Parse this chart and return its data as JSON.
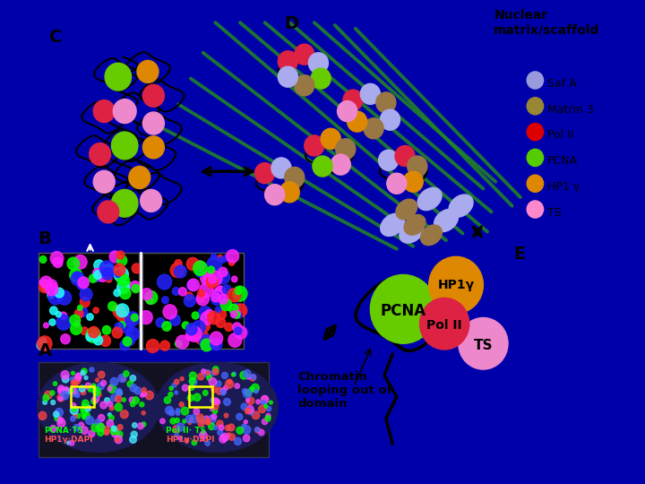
{
  "background_color": "#ffffff",
  "outer_background": "#0000aa",
  "legend_items": [
    {
      "label": "Saf A",
      "color": "#9999dd"
    },
    {
      "label": "Matrin 3",
      "color": "#998833"
    },
    {
      "label": "Pol II",
      "color": "#dd0000"
    },
    {
      "label": "PCNA",
      "color": "#55cc00"
    },
    {
      "label": "HP1 γ",
      "color": "#dd8800"
    },
    {
      "label": "TS",
      "color": "#ff88cc"
    }
  ],
  "pcna_color": "#66cc00",
  "hp1y_color": "#dd8800",
  "polii_color": "#dd2244",
  "ts_color": "#ee88cc",
  "green_fiber_color": "#228822",
  "safa_color": "#aaaaee",
  "matrin3_color": "#997744",
  "chromatin_text": "Chromatin\nlooping out of\ndomain",
  "nuclear_matrix_text": "Nuclear\nmatrix/scaffold"
}
